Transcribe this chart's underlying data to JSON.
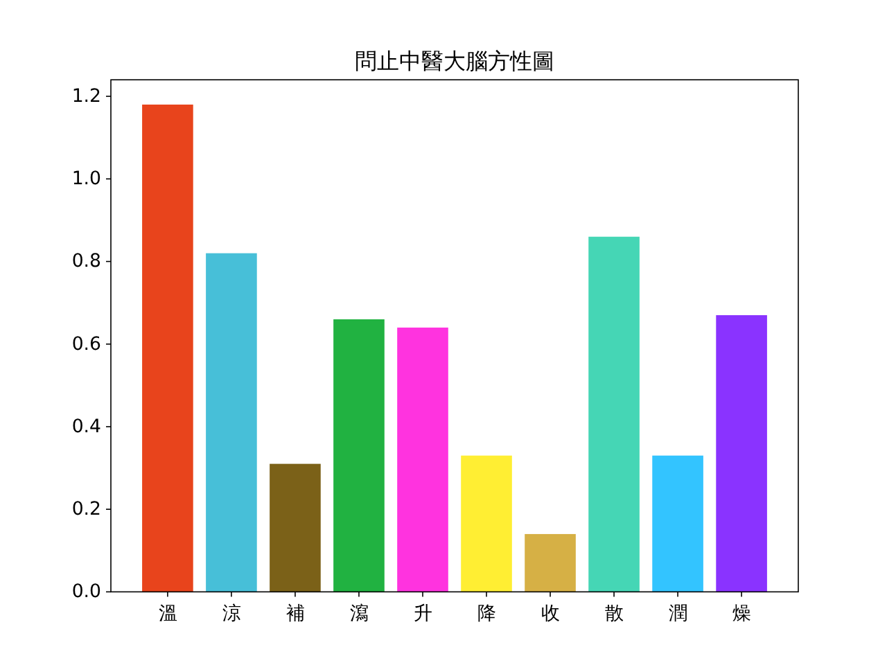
{
  "chart_data": {
    "type": "bar",
    "title": "問止中醫大腦方性圖",
    "categories": [
      "溫",
      "涼",
      "補",
      "瀉",
      "升",
      "降",
      "收",
      "散",
      "潤",
      "燥"
    ],
    "values": [
      1.18,
      0.82,
      0.31,
      0.66,
      0.64,
      0.33,
      0.14,
      0.86,
      0.33,
      0.67
    ],
    "colors": [
      "#e8441c",
      "#47bfd8",
      "#7b6118",
      "#21b241",
      "#ff33df",
      "#ffee33",
      "#d6b045",
      "#45d6b5",
      "#33c4ff",
      "#8a33ff"
    ],
    "ylim": [
      0,
      1.24
    ],
    "yticks": [
      {
        "value": 0,
        "label": "0.0"
      },
      {
        "value": 0.2,
        "label": "0.2"
      },
      {
        "value": 0.4,
        "label": "0.4"
      },
      {
        "value": 0.6,
        "label": "0.6"
      },
      {
        "value": 0.8,
        "label": "0.8"
      },
      {
        "value": 1,
        "label": "1.0"
      },
      {
        "value": 1.2,
        "label": "1.2"
      }
    ]
  }
}
